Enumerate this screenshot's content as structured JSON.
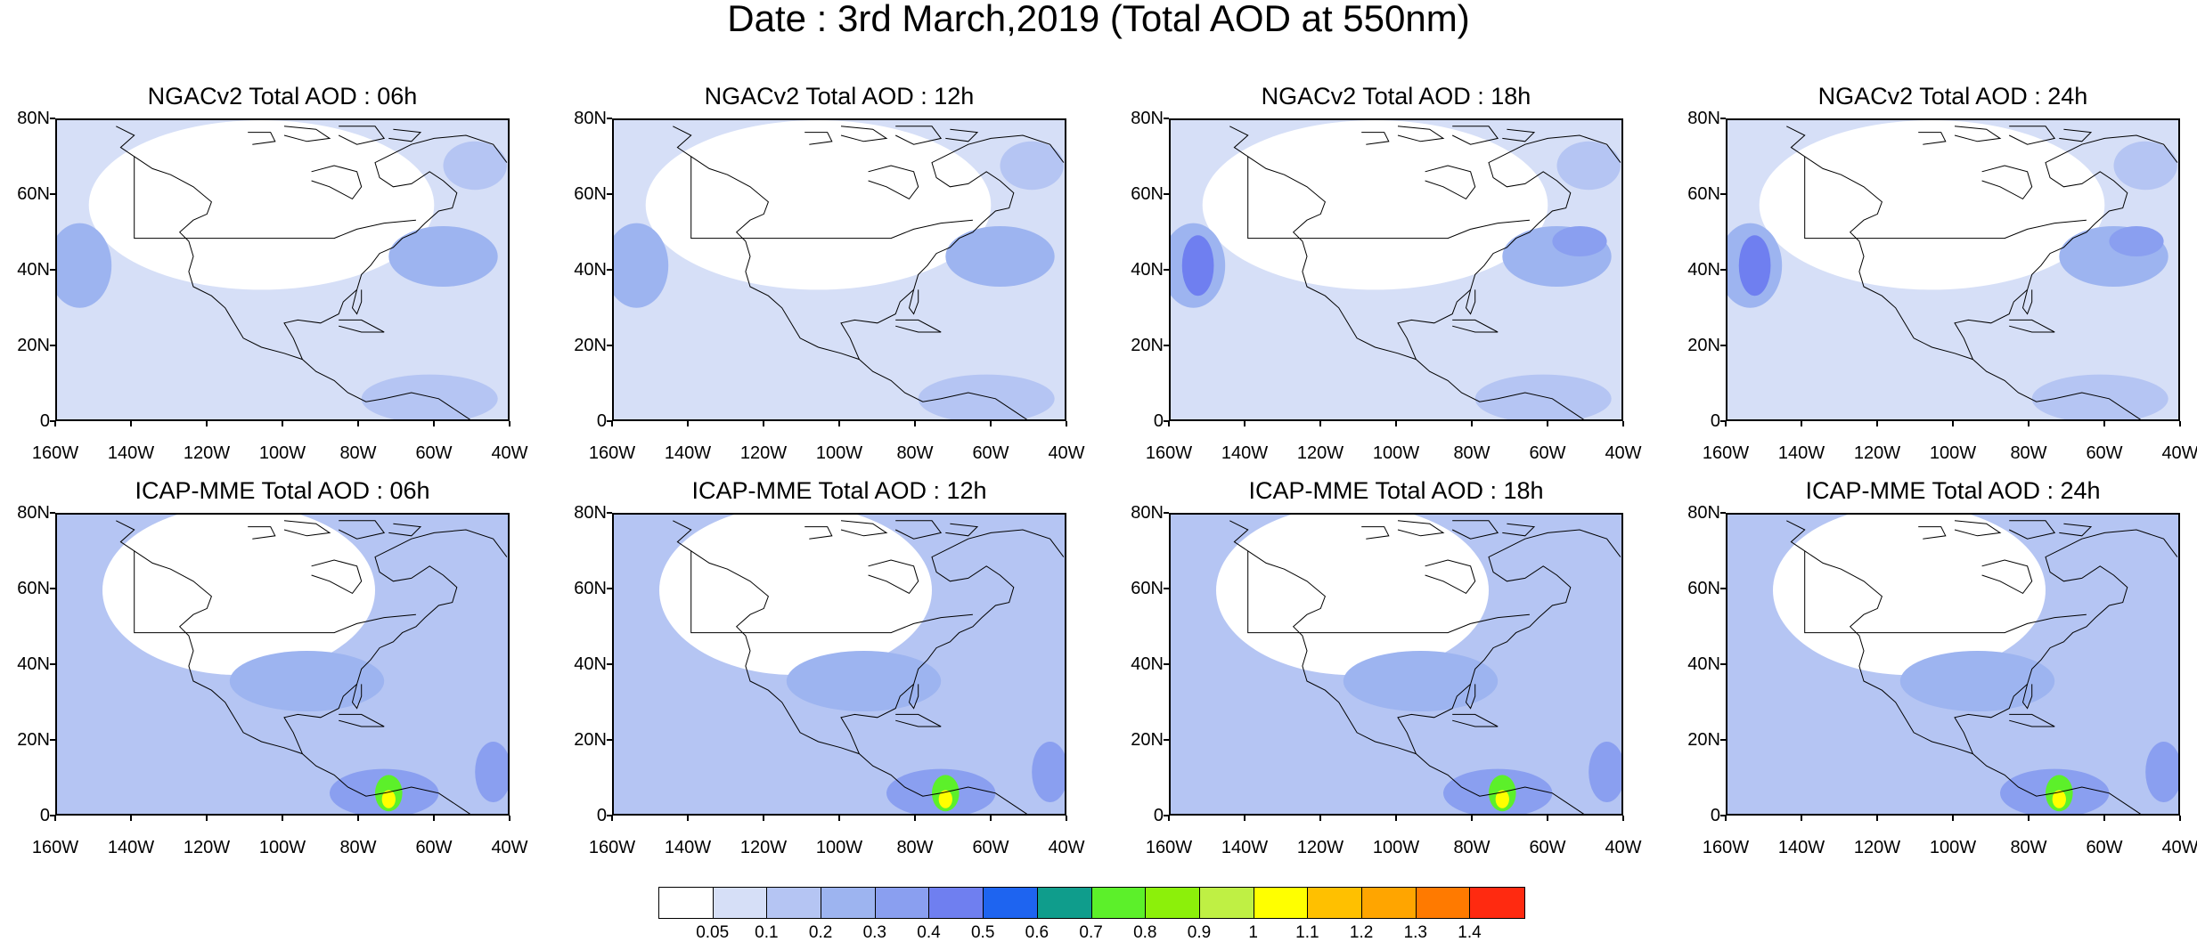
{
  "title": "Date : 3rd March,2019 (Total AOD at 550nm)",
  "panels": [
    {
      "title": "NGACv2 Total AOD : 06h"
    },
    {
      "title": "NGACv2 Total AOD : 12h"
    },
    {
      "title": "NGACv2 Total AOD : 18h"
    },
    {
      "title": "NGACv2 Total AOD : 24h"
    },
    {
      "title": "ICAP-MME Total AOD : 06h"
    },
    {
      "title": "ICAP-MME Total AOD : 12h"
    },
    {
      "title": "ICAP-MME Total AOD : 18h"
    },
    {
      "title": "ICAP-MME Total AOD : 24h"
    }
  ],
  "axes": {
    "y_labels": [
      "80N",
      "60N",
      "40N",
      "20N",
      "0"
    ],
    "x_labels": [
      "160W",
      "140W",
      "120W",
      "100W",
      "80W",
      "60W",
      "40W"
    ]
  },
  "colorbar": {
    "colors": [
      "#ffffff",
      "#d6dff7",
      "#b5c5f3",
      "#9db4f0",
      "#8a9ff0",
      "#6f7ff0",
      "#1e64f0",
      "#0f9d8c",
      "#5cf02a",
      "#8cf00a",
      "#bff044",
      "#ffff00",
      "#ffc000",
      "#ffa500",
      "#ff7a00",
      "#ff2a10"
    ],
    "labels": [
      "0.05",
      "0.1",
      "0.2",
      "0.3",
      "0.4",
      "0.5",
      "0.6",
      "0.7",
      "0.8",
      "0.9",
      "1",
      "1.1",
      "1.2",
      "1.3",
      "1.4"
    ]
  }
}
